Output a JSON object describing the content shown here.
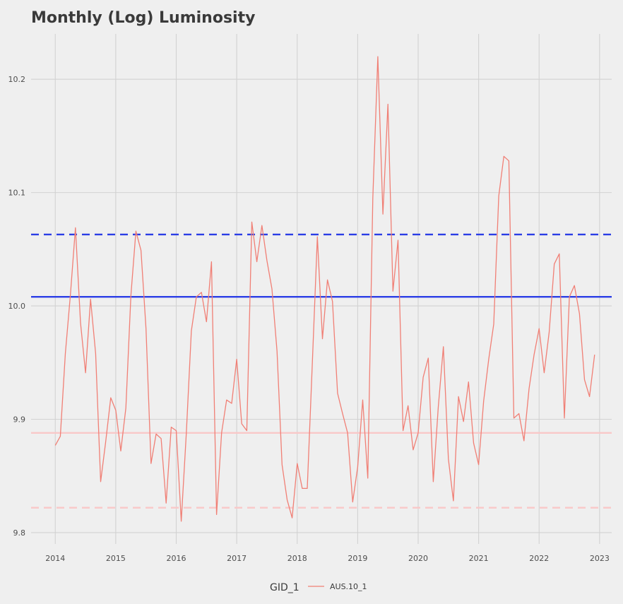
{
  "chart_data": {
    "type": "line",
    "title": "Monthly (Log) Luminosity",
    "xlabel": "",
    "ylabel": "",
    "xlim": [
      2013.6,
      2023.2
    ],
    "ylim": [
      9.79,
      10.24
    ],
    "x_ticks": [
      2014,
      2015,
      2016,
      2017,
      2018,
      2019,
      2020,
      2021,
      2022,
      2023
    ],
    "x_tick_labels": [
      "2014",
      "2015",
      "2016",
      "2017",
      "2018",
      "2019",
      "2020",
      "2021",
      "2022",
      "2023"
    ],
    "y_ticks": [
      9.8,
      9.9,
      10.0,
      10.1,
      10.2
    ],
    "y_tick_labels": [
      "9.8",
      "9.9",
      "10.0",
      "10.1",
      "10.2"
    ],
    "grid": true,
    "legend": {
      "title": "GID_1",
      "position": "bottom"
    },
    "series": [
      {
        "name": "AUS.10_1",
        "color": "#f07f75",
        "x": [
          2014.0,
          2014.083,
          2014.167,
          2014.25,
          2014.333,
          2014.417,
          2014.5,
          2014.583,
          2014.667,
          2014.75,
          2014.833,
          2014.917,
          2015.0,
          2015.083,
          2015.167,
          2015.25,
          2015.333,
          2015.417,
          2015.5,
          2015.583,
          2015.667,
          2015.75,
          2015.833,
          2015.917,
          2016.0,
          2016.083,
          2016.167,
          2016.25,
          2016.333,
          2016.417,
          2016.5,
          2016.583,
          2016.667,
          2016.75,
          2016.833,
          2016.917,
          2017.0,
          2017.083,
          2017.167,
          2017.25,
          2017.333,
          2017.417,
          2017.5,
          2017.583,
          2017.667,
          2017.75,
          2017.833,
          2017.917,
          2018.0,
          2018.083,
          2018.167,
          2018.25,
          2018.333,
          2018.417,
          2018.5,
          2018.583,
          2018.667,
          2018.75,
          2018.833,
          2018.917,
          2019.0,
          2019.083,
          2019.167,
          2019.25,
          2019.333,
          2019.417,
          2019.5,
          2019.583,
          2019.667,
          2019.75,
          2019.833,
          2019.917,
          2020.0,
          2020.083,
          2020.167,
          2020.25,
          2020.333,
          2020.417,
          2020.5,
          2020.583,
          2020.667,
          2020.75,
          2020.833,
          2020.917,
          2021.0,
          2021.083,
          2021.167,
          2021.25,
          2021.333,
          2021.417,
          2021.5,
          2021.583,
          2021.667,
          2021.75,
          2021.833,
          2021.917,
          2022.0,
          2022.083,
          2022.167,
          2022.25,
          2022.333,
          2022.417,
          2022.5,
          2022.583,
          2022.667,
          2022.75,
          2022.833,
          2022.917
        ],
        "y": [
          9.877,
          9.885,
          9.958,
          10.01,
          10.069,
          9.985,
          9.941,
          10.006,
          9.958,
          9.845,
          9.88,
          9.919,
          9.908,
          9.872,
          9.91,
          10.009,
          10.066,
          10.049,
          9.98,
          9.861,
          9.887,
          9.883,
          9.826,
          9.893,
          9.89,
          9.81,
          9.888,
          9.978,
          10.008,
          10.012,
          9.986,
          10.039,
          9.816,
          9.888,
          9.917,
          9.914,
          9.953,
          9.896,
          9.89,
          10.074,
          10.039,
          10.071,
          10.04,
          10.015,
          9.96,
          9.86,
          9.829,
          9.813,
          9.861,
          9.839,
          9.839,
          9.95,
          10.061,
          9.971,
          10.023,
          10.004,
          9.923,
          9.905,
          9.888,
          9.827,
          9.858,
          9.917,
          9.848,
          10.095,
          10.22,
          10.081,
          10.178,
          10.013,
          10.058,
          9.89,
          9.912,
          9.873,
          9.888,
          9.937,
          9.954,
          9.845,
          9.911,
          9.964,
          9.865,
          9.828,
          9.92,
          9.898,
          9.933,
          9.879,
          9.86,
          9.916,
          9.953,
          9.984,
          10.097,
          10.132,
          10.128,
          9.901,
          9.905,
          9.881,
          9.927,
          9.957,
          9.98,
          9.941,
          9.977,
          10.037,
          10.046,
          9.901,
          10.008,
          10.018,
          9.993,
          9.935,
          9.92,
          9.957
        ]
      }
    ],
    "hlines": [
      {
        "y": 10.063,
        "color": "#2b3ee6",
        "style": "dashed"
      },
      {
        "y": 10.008,
        "color": "#2b3ee6",
        "style": "solid"
      },
      {
        "y": 9.888,
        "color": "#f9c8c8",
        "style": "solid"
      },
      {
        "y": 9.822,
        "color": "#f9c8c8",
        "style": "dashed"
      }
    ]
  }
}
